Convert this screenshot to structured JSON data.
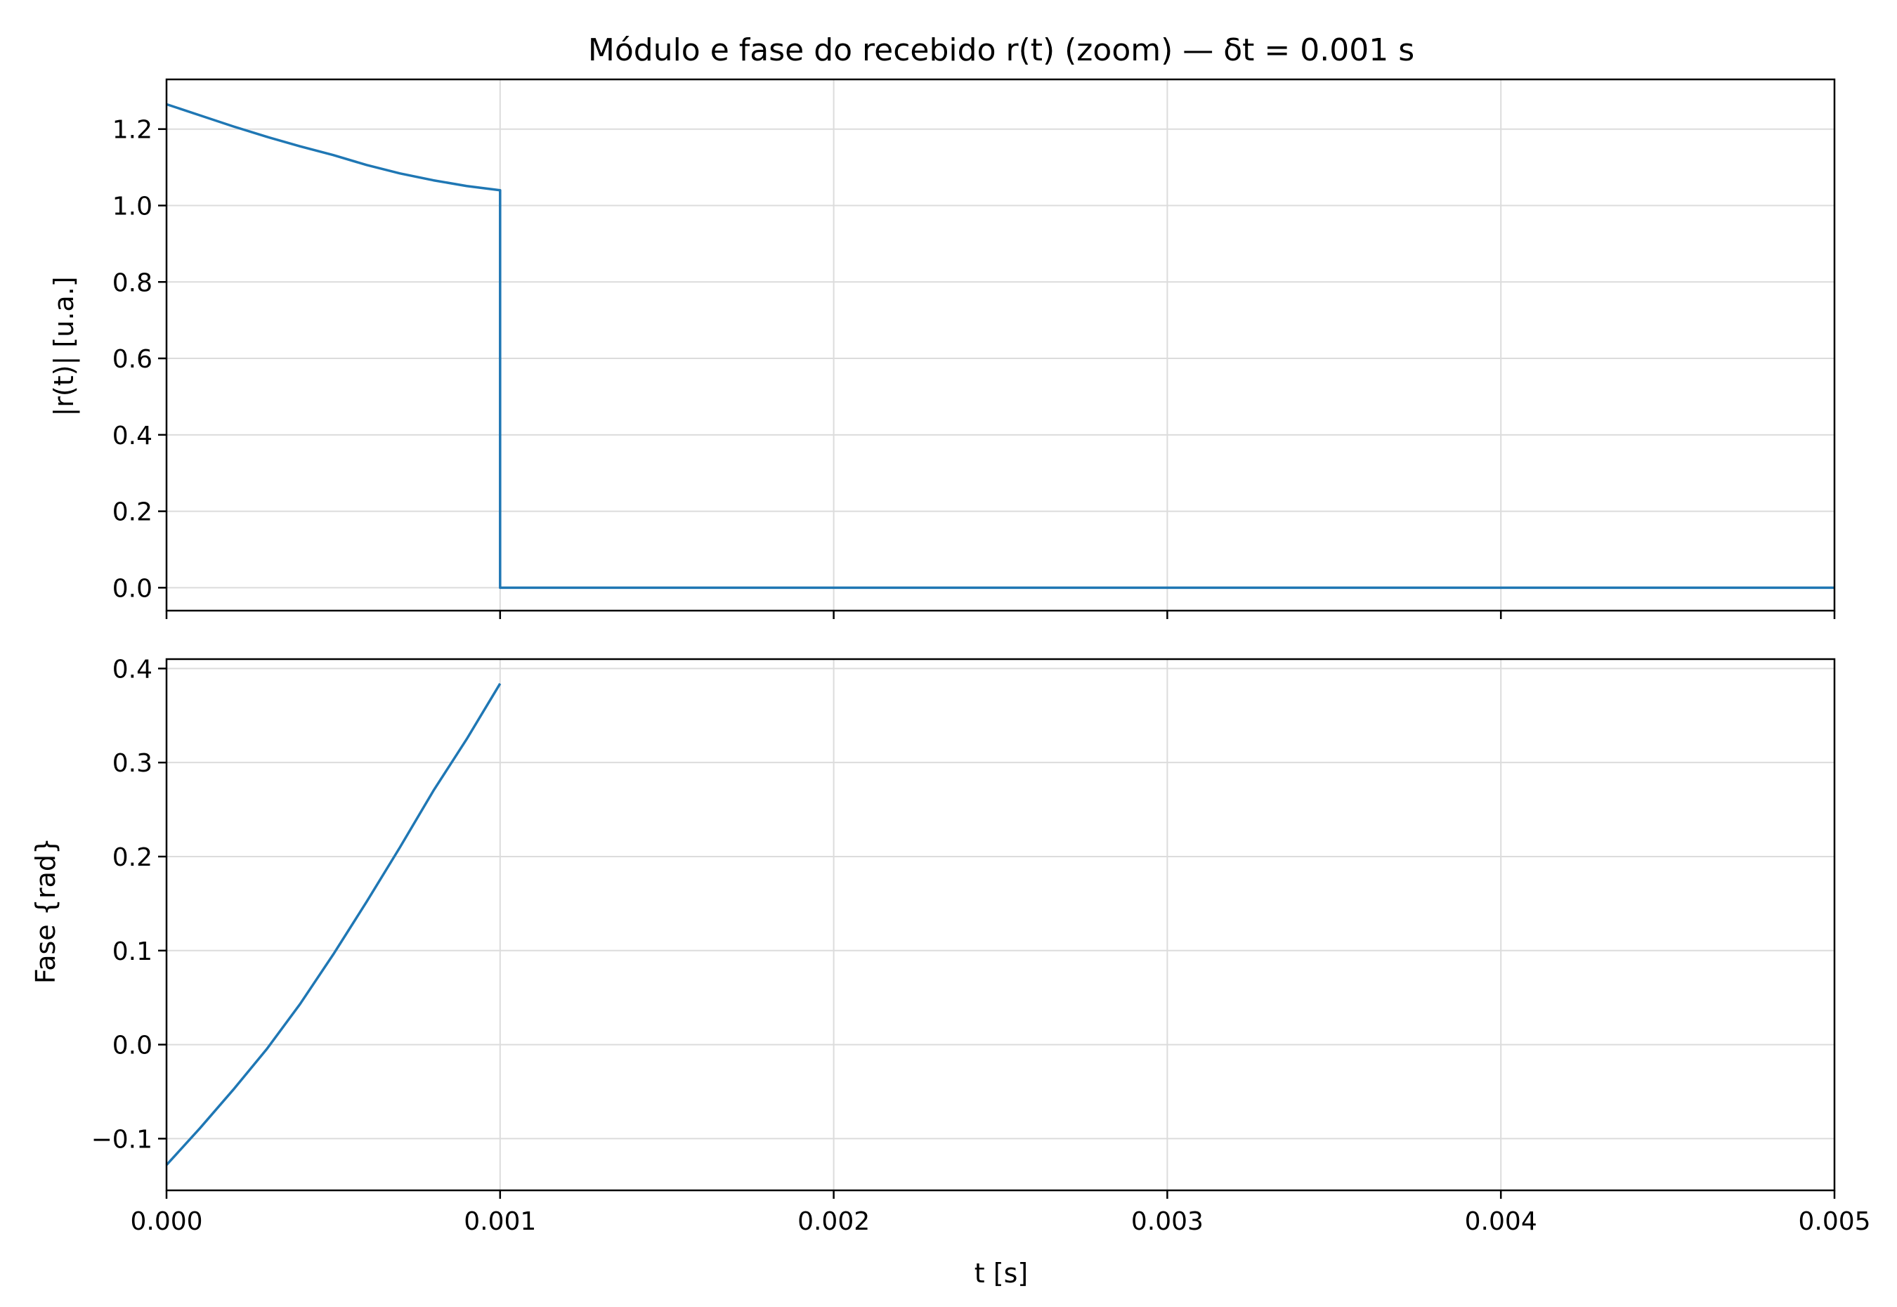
{
  "chart_data": {
    "title": "Módulo e fase do recebido r(t) (zoom) — δt = 0.001 s",
    "xlabel": "t [s]",
    "xlim": [
      0,
      0.005
    ],
    "xticks": [
      "0.000",
      "0.001",
      "0.002",
      "0.003",
      "0.004",
      "0.005"
    ],
    "grid": true,
    "line_color": "#1f77b4",
    "panels": [
      {
        "type": "line",
        "ylabel": "|r(t)| [u.a.]",
        "ylim": [
          -0.06,
          1.33
        ],
        "yticks": [
          "0.0",
          "0.2",
          "0.4",
          "0.6",
          "0.8",
          "1.0",
          "1.2"
        ],
        "series": [
          {
            "x": [
              0,
              0.0001,
              0.0002,
              0.0003,
              0.0004,
              0.0005,
              0.0006,
              0.0007,
              0.0008,
              0.0009,
              0.001,
              0.001,
              0.002,
              0.003,
              0.004,
              0.005
            ],
            "y": [
              1.265,
              1.236,
              1.207,
              1.18,
              1.155,
              1.132,
              1.106,
              1.084,
              1.066,
              1.051,
              1.04,
              0.0,
              0.0,
              0.0,
              0.0,
              0.0
            ]
          }
        ]
      },
      {
        "type": "line",
        "ylabel": "Fase {rad}",
        "ylim": [
          -0.155,
          0.41
        ],
        "yticks": [
          "−0.1",
          "0.0",
          "0.1",
          "0.2",
          "0.3",
          "0.4"
        ],
        "series": [
          {
            "x": [
              0,
              0.0001,
              0.0002,
              0.0003,
              0.0004,
              0.0005,
              0.0006,
              0.0007,
              0.0008,
              0.0009,
              0.001
            ],
            "y": [
              -0.128,
              -0.089,
              -0.048,
              -0.005,
              0.043,
              0.096,
              0.152,
              0.21,
              0.27,
              0.325,
              0.384
            ]
          }
        ]
      }
    ]
  }
}
